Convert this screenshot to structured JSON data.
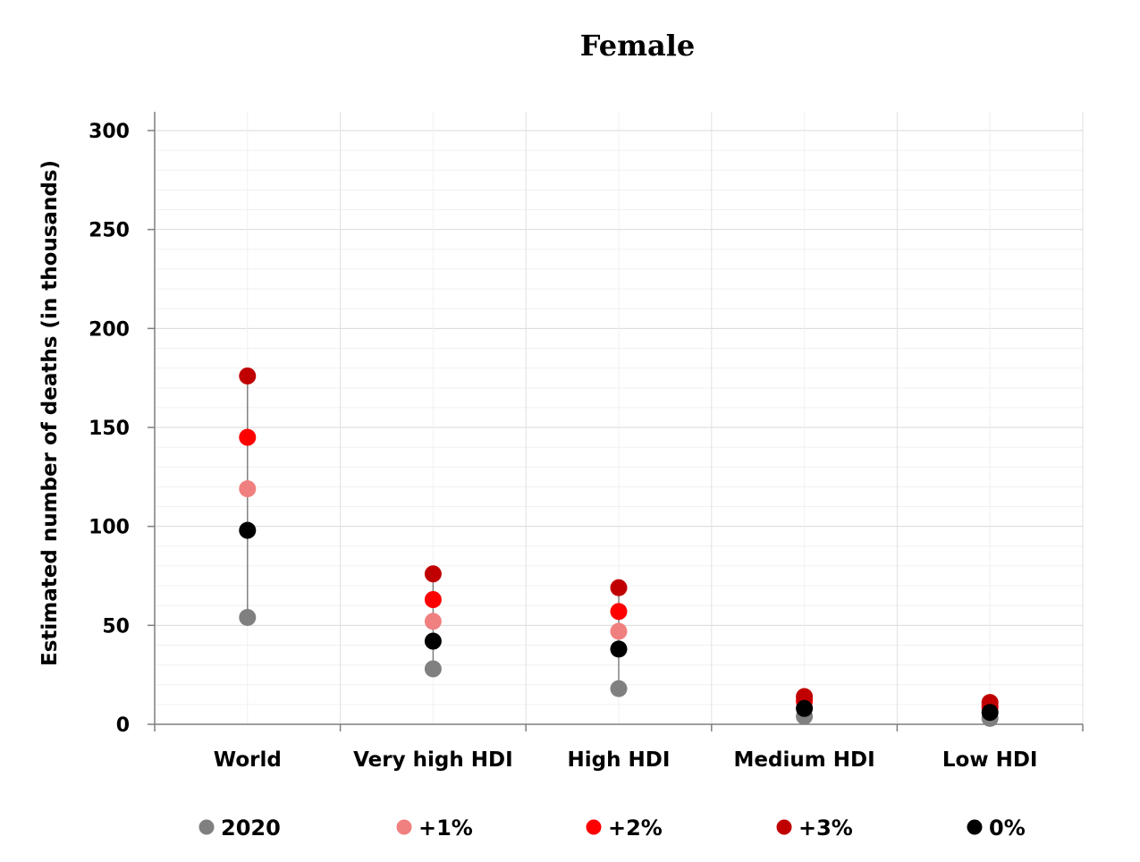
{
  "chart_data": {
    "type": "scatter",
    "title": "Female",
    "xlabel": "",
    "ylabel": "Estimated number of deaths (in thousands)",
    "categories": [
      "World",
      "Very high HDI",
      "High HDI",
      "Medium HDI",
      "Low HDI"
    ],
    "ylim": [
      0,
      300
    ],
    "yticks": [
      0,
      50,
      100,
      150,
      200,
      250,
      300
    ],
    "grid": true,
    "legend_position": "bottom",
    "series": [
      {
        "name": "2020",
        "color": "#808080",
        "values": [
          54,
          28,
          18,
          4,
          3
        ]
      },
      {
        "name": "+1%",
        "color": "#f08080",
        "values": [
          119,
          52,
          47,
          11,
          8
        ]
      },
      {
        "name": "+2%",
        "color": "#ff0000",
        "values": [
          145,
          63,
          57,
          12,
          9
        ]
      },
      {
        "name": "+3%",
        "color": "#c00000",
        "values": [
          176,
          76,
          69,
          14,
          11
        ]
      },
      {
        "name": "0%",
        "color": "#000000",
        "values": [
          98,
          42,
          38,
          8,
          6
        ]
      }
    ]
  }
}
